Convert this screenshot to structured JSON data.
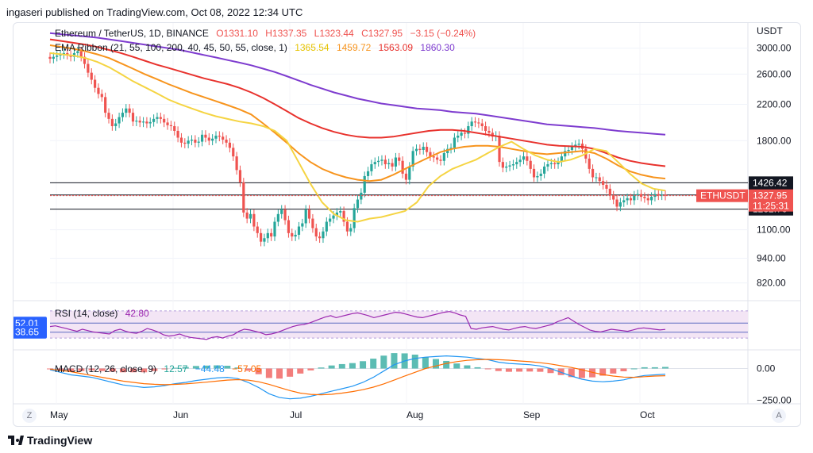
{
  "caption": "ingaseri published on TradingView.com, Oct 08, 2022 12:34 UTC",
  "brand": "TradingView",
  "price_legend": {
    "symbol": "Ethereum / TetherUS, 1D, BINANCE",
    "o": "O1331.10",
    "h": "H1337.35",
    "l": "L1323.44",
    "c": "C1327.95",
    "change": "−3.15 (−0.24%)"
  },
  "ema_legend": {
    "name": "EMA Ribbon (21, 55, 100, 200, 40, 45, 50, 55, close, 1)",
    "v1": "1365.54",
    "v2": "1459.72",
    "v3": "1563.09",
    "v4": "1860.30"
  },
  "rsi_legend": {
    "name": "RSI (14, close)",
    "value": "42.80"
  },
  "macd_legend": {
    "name": "MACD (12, 26, close, 9)",
    "v1": "12.57",
    "v2": "−44.48",
    "v3": "−57.05"
  },
  "buttons": {
    "z": "Z",
    "a": "A"
  },
  "colors": {
    "up": "#26a69a",
    "down": "#ef5350",
    "ema21": "#f5d442",
    "ema55": "#f7941d",
    "ema100": "#e8322d",
    "ema200": "#7e3ccf",
    "rsi": "#9c27b0",
    "rsi_band": "#f3e5f5",
    "macd": "#2196f3",
    "signal": "#ff6d00",
    "hist_pos": "#26a69a",
    "hist_neg": "#ef5350"
  },
  "chart_data": [
    {
      "type": "candlestick",
      "pane": "price",
      "unit": "USDT",
      "x_labels": [
        "May",
        "Jun",
        "Jul",
        "Aug",
        "Sep",
        "Oct"
      ],
      "y_ticks": [
        "3000.00",
        "2600.00",
        "2200.00",
        "1800.00",
        "1100.00",
        "940.00",
        "820.00"
      ],
      "y_tick_values": [
        3000,
        2600,
        2200,
        1800,
        1100,
        940,
        820
      ],
      "ylim": [
        760,
        3300
      ],
      "y_scale": "log",
      "horizontal_lines": [
        {
          "label": "1426.42",
          "value": 1426.42
        },
        {
          "label": "1333.18",
          "value": 1333.18
        },
        {
          "label": "1232.70",
          "value": 1232.7
        }
      ],
      "last_price": {
        "symbol": "ETHUSDT",
        "price": "1327.95",
        "countdown": "11:25:31",
        "value": 1327.95
      },
      "close": [
        2830,
        2860,
        2880,
        2900,
        2920,
        2890,
        2860,
        2920,
        2950,
        2860,
        2750,
        2620,
        2520,
        2410,
        2330,
        2290,
        2100,
        2030,
        1950,
        1980,
        2050,
        2100,
        2150,
        2100,
        2000,
        2010,
        1990,
        2000,
        1980,
        1995,
        2030,
        2050,
        2030,
        1990,
        1960,
        1950,
        1900,
        1830,
        1780,
        1770,
        1800,
        1810,
        1780,
        1790,
        1860,
        1830,
        1800,
        1820,
        1850,
        1840,
        1810,
        1780,
        1730,
        1650,
        1530,
        1430,
        1210,
        1170,
        1200,
        1120,
        1080,
        1030,
        1050,
        1080,
        1060,
        1150,
        1200,
        1230,
        1160,
        1080,
        1060,
        1070,
        1120,
        1140,
        1230,
        1170,
        1110,
        1060,
        1050,
        1090,
        1150,
        1170,
        1190,
        1210,
        1220,
        1150,
        1090,
        1110,
        1240,
        1300,
        1350,
        1480,
        1520,
        1580,
        1600,
        1610,
        1620,
        1580,
        1590,
        1560,
        1640,
        1610,
        1500,
        1450,
        1560,
        1700,
        1720,
        1710,
        1740,
        1690,
        1650,
        1640,
        1620,
        1610,
        1680,
        1720,
        1730,
        1830,
        1850,
        1880,
        1870,
        1950,
        2000,
        1990,
        1980,
        1950,
        1900,
        1880,
        1840,
        1850,
        1600,
        1550,
        1560,
        1570,
        1580,
        1600,
        1620,
        1650,
        1610,
        1540,
        1470,
        1480,
        1500,
        1560,
        1580,
        1590,
        1580,
        1600,
        1650,
        1700,
        1710,
        1740,
        1760,
        1770,
        1720,
        1630,
        1540,
        1470,
        1470,
        1440,
        1410,
        1380,
        1330,
        1300,
        1250,
        1280,
        1295,
        1310,
        1295,
        1330,
        1340,
        1320,
        1310,
        1295,
        1320,
        1340,
        1330,
        1335,
        1327.95
      ],
      "ema21": [
        2920,
        2900,
        2880,
        2840,
        2780,
        2700,
        2600,
        2500,
        2420,
        2340,
        2260,
        2200,
        2150,
        2100,
        2060,
        2030,
        2000,
        1980,
        1950,
        1900,
        1800,
        1600,
        1420,
        1280,
        1200,
        1160,
        1150,
        1170,
        1180,
        1200,
        1220,
        1280,
        1400,
        1480,
        1540,
        1580,
        1620,
        1680,
        1740,
        1790,
        1720,
        1660,
        1620,
        1600,
        1620,
        1660,
        1720,
        1700,
        1600,
        1500,
        1420,
        1380,
        1365.54
      ],
      "ema55": [
        3050,
        3020,
        2990,
        2950,
        2900,
        2840,
        2760,
        2680,
        2600,
        2530,
        2460,
        2400,
        2340,
        2290,
        2240,
        2190,
        2140,
        2080,
        1980,
        1880,
        1780,
        1680,
        1600,
        1540,
        1500,
        1470,
        1450,
        1440,
        1450,
        1490,
        1540,
        1590,
        1640,
        1690,
        1720,
        1740,
        1750,
        1750,
        1740,
        1720,
        1700,
        1680,
        1670,
        1680,
        1690,
        1700,
        1680,
        1630,
        1570,
        1520,
        1490,
        1470,
        1459.72
      ],
      "ema100": [
        3150,
        3120,
        3090,
        3060,
        3020,
        2970,
        2920,
        2860,
        2800,
        2740,
        2690,
        2640,
        2590,
        2540,
        2500,
        2460,
        2410,
        2350,
        2280,
        2200,
        2120,
        2040,
        1980,
        1930,
        1890,
        1860,
        1840,
        1830,
        1830,
        1840,
        1860,
        1880,
        1900,
        1910,
        1910,
        1900,
        1880,
        1860,
        1840,
        1820,
        1800,
        1780,
        1760,
        1750,
        1745,
        1740,
        1720,
        1680,
        1640,
        1610,
        1590,
        1575,
        1563.09
      ],
      "ema200": [
        3260,
        3240,
        3220,
        3200,
        3180,
        3150,
        3120,
        3090,
        3060,
        3030,
        3000,
        2970,
        2930,
        2890,
        2850,
        2810,
        2770,
        2730,
        2680,
        2630,
        2570,
        2510,
        2450,
        2400,
        2350,
        2310,
        2270,
        2240,
        2210,
        2190,
        2170,
        2150,
        2140,
        2130,
        2110,
        2100,
        2090,
        2070,
        2050,
        2030,
        2010,
        1990,
        1970,
        1960,
        1950,
        1940,
        1930,
        1915,
        1900,
        1890,
        1880,
        1870,
        1860.3
      ]
    },
    {
      "type": "line",
      "pane": "rsi",
      "name": "RSI (14, close)",
      "band": [
        30,
        70
      ],
      "ylim": [
        22,
        78
      ],
      "axis_labels": [
        {
          "label": "52.01",
          "value": 52.01
        },
        {
          "label": "38.65",
          "value": 38.65
        }
      ],
      "values": [
        47,
        48,
        46,
        44,
        42,
        40,
        43,
        41,
        39,
        38,
        37,
        36,
        41,
        43,
        40,
        38,
        37,
        40,
        44,
        42,
        39,
        35,
        33,
        34,
        36,
        33,
        31,
        30,
        29,
        28,
        31,
        32,
        30,
        33,
        35,
        40,
        43,
        42,
        40,
        38,
        35,
        36,
        38,
        41,
        44,
        47,
        49,
        50,
        52,
        55,
        58,
        61,
        63,
        60,
        62,
        64,
        66,
        67,
        65,
        63,
        60,
        62,
        64,
        66,
        68,
        67,
        65,
        63,
        61,
        60,
        62,
        64,
        66,
        68,
        69,
        67,
        64,
        62,
        44,
        43,
        45,
        46,
        47,
        45,
        43,
        42,
        44,
        46,
        47,
        45,
        44,
        46,
        48,
        50,
        54,
        57,
        60,
        55,
        50,
        46,
        42,
        40,
        39,
        41,
        43,
        42,
        41,
        40,
        42,
        44,
        45,
        44,
        43,
        42,
        42.8
      ]
    },
    {
      "type": "line+histogram",
      "pane": "macd",
      "name": "MACD (12, 26, close, 9)",
      "y_ticks": [
        "0.00",
        "−250.00"
      ],
      "y_tick_values": [
        0,
        -250
      ],
      "ylim": [
        -330,
        110
      ],
      "macd": [
        -10,
        -30,
        -50,
        -60,
        -70,
        -90,
        -110,
        -130,
        -140,
        -150,
        -145,
        -135,
        -120,
        -110,
        -95,
        -85,
        -75,
        -70,
        -80,
        -110,
        -150,
        -200,
        -230,
        -240,
        -235,
        -220,
        -200,
        -180,
        -160,
        -140,
        -110,
        -70,
        -20,
        30,
        60,
        80,
        90,
        95,
        100,
        95,
        90,
        80,
        70,
        50,
        40,
        35,
        30,
        20,
        0,
        -30,
        -60,
        -85,
        -100,
        -105,
        -100,
        -90,
        -70,
        -55,
        -50,
        -44.48
      ],
      "signal": [
        -5,
        -15,
        -25,
        -40,
        -55,
        -70,
        -85,
        -100,
        -110,
        -120,
        -125,
        -128,
        -126,
        -122,
        -115,
        -108,
        -100,
        -92,
        -88,
        -92,
        -105,
        -125,
        -150,
        -175,
        -195,
        -205,
        -208,
        -204,
        -195,
        -183,
        -168,
        -148,
        -122,
        -92,
        -60,
        -30,
        0,
        20,
        40,
        55,
        65,
        70,
        72,
        70,
        66,
        60,
        54,
        46,
        36,
        22,
        8,
        -10,
        -30,
        -48,
        -60,
        -68,
        -70,
        -65,
        -60,
        -57.05
      ]
    }
  ]
}
